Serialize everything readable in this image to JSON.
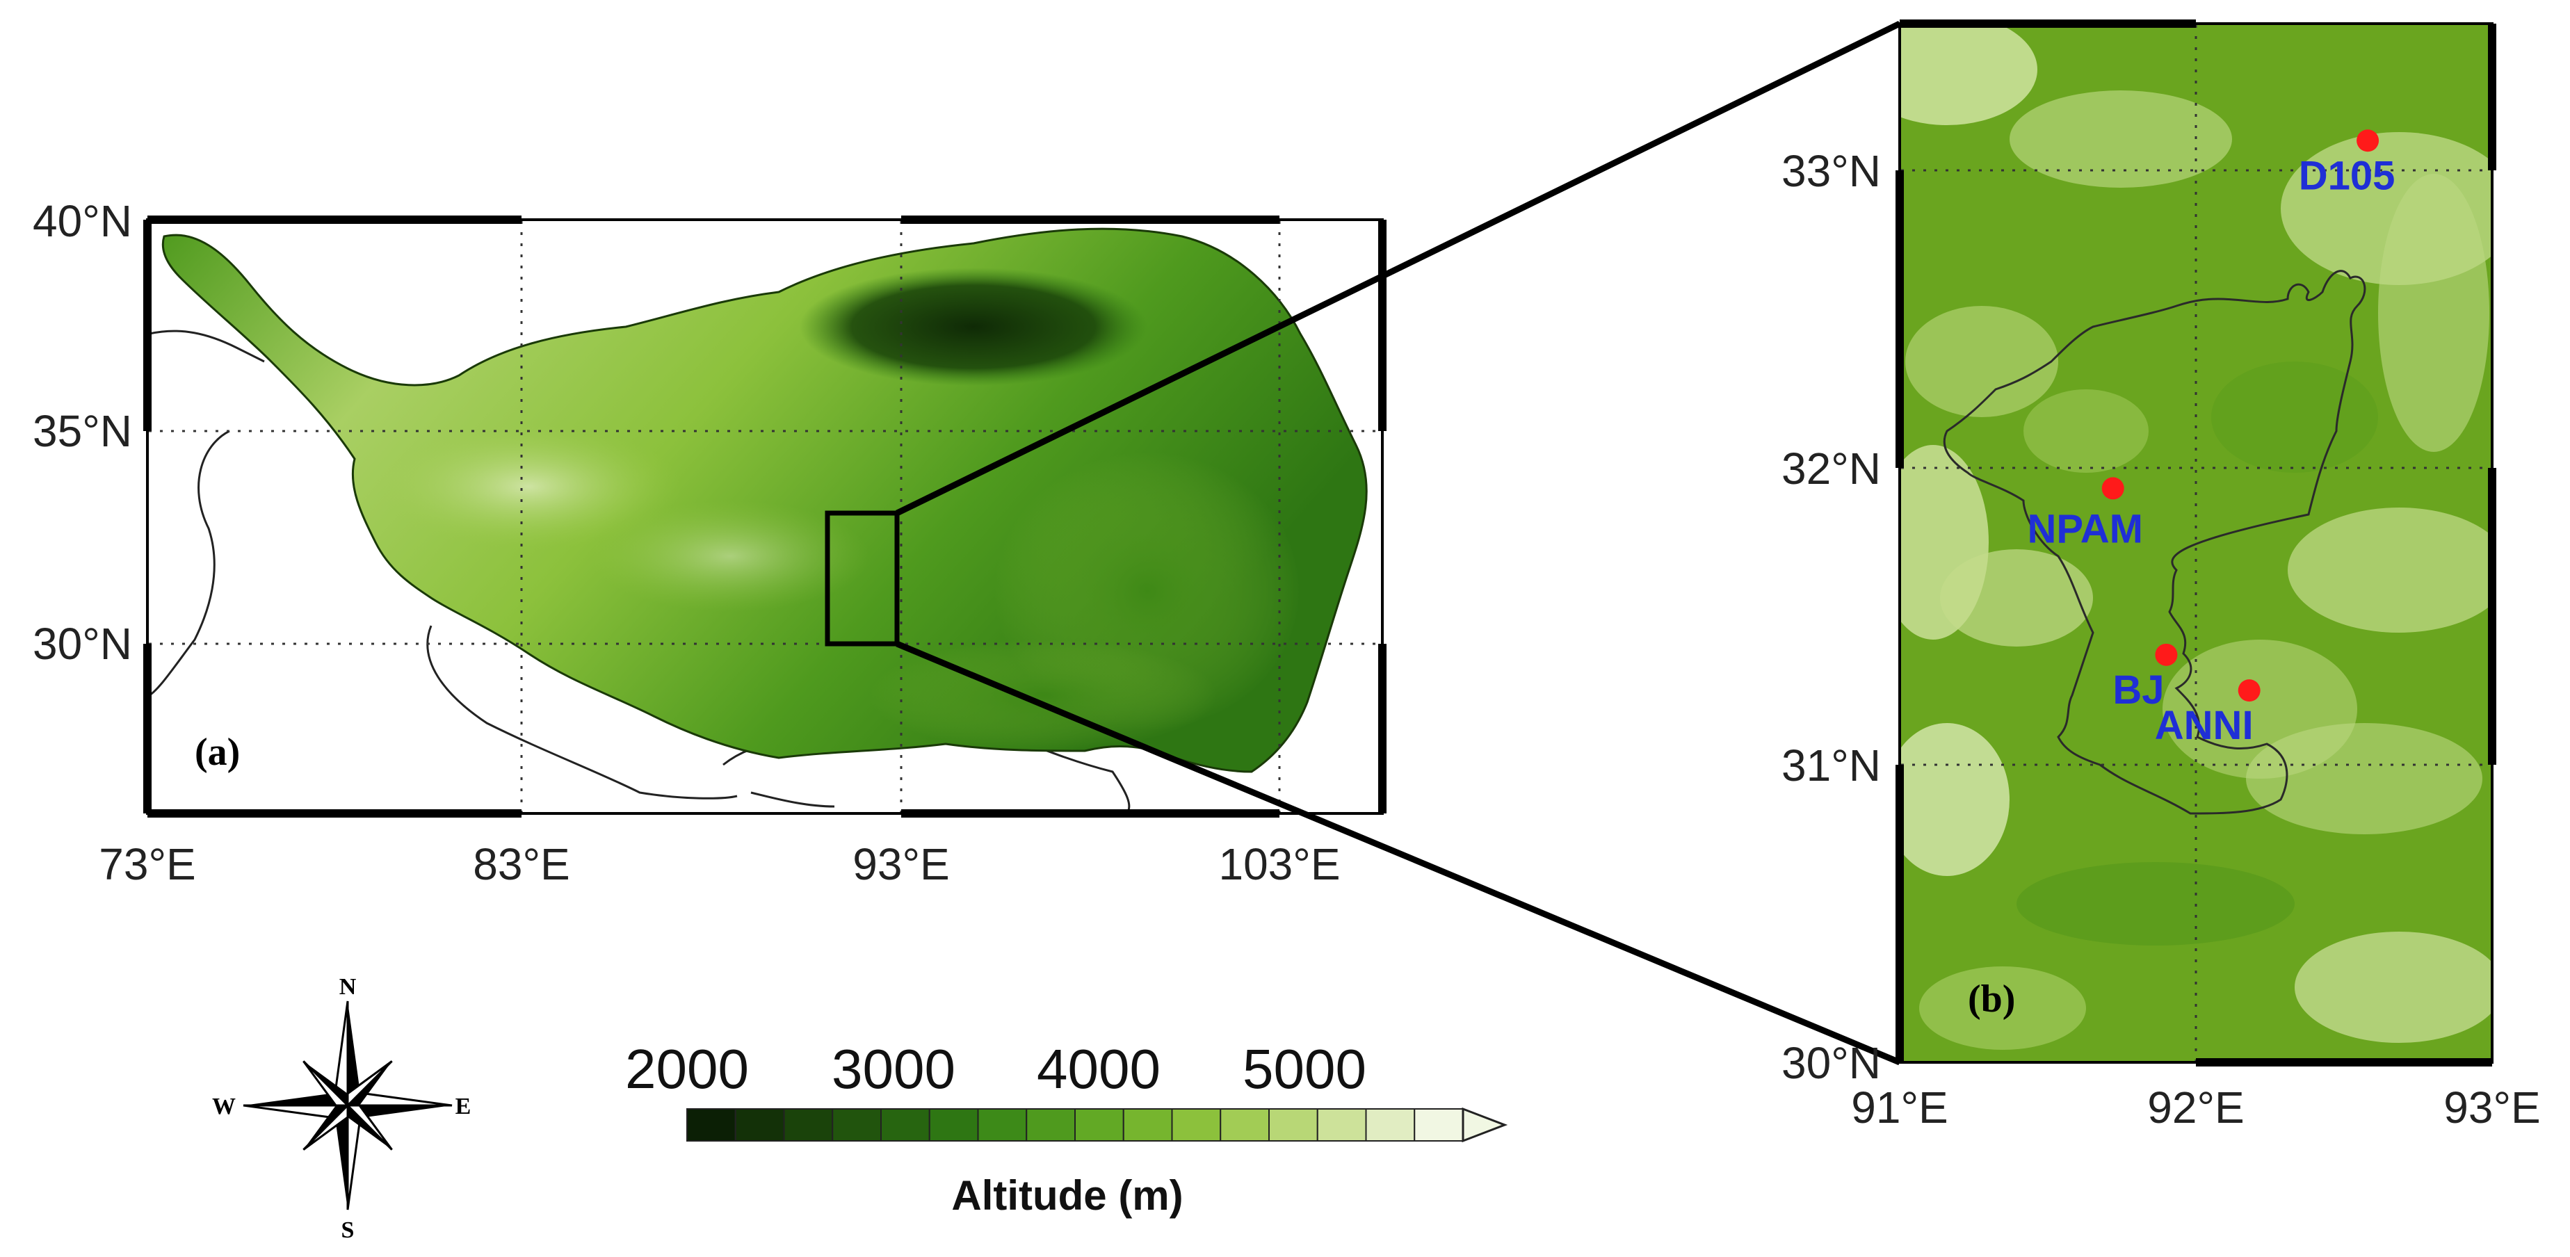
{
  "panel_a": {
    "label": "(a)",
    "lat_ticks": [
      "40°N",
      "35°N",
      "30°N"
    ],
    "lon_ticks": [
      "73°E",
      "83°E",
      "93°E",
      "103°E"
    ],
    "extent": {
      "lon_min": 73,
      "lon_max": 106,
      "lat_min": 26,
      "lat_max": 40
    },
    "inset_box": {
      "lon_min": 91,
      "lon_max": 93,
      "lat_min": 30,
      "lat_max": 33.4
    }
  },
  "panel_b": {
    "label": "(b)",
    "lat_ticks": [
      "33°N",
      "32°N",
      "31°N",
      "30°N"
    ],
    "lon_ticks": [
      "91°E",
      "92°E",
      "93°E"
    ],
    "extent": {
      "lon_min": 91,
      "lon_max": 93,
      "lat_min": 30,
      "lat_max": 33.5
    },
    "stations": [
      {
        "name": "D105",
        "lon": 92.58,
        "lat": 33.1
      },
      {
        "name": "NPAM",
        "lon": 91.72,
        "lat": 31.93
      },
      {
        "name": "BJ",
        "lon": 91.9,
        "lat": 31.37
      },
      {
        "name": "ANNI",
        "lon": 92.18,
        "lat": 31.25
      }
    ]
  },
  "colorbar": {
    "ticks": [
      "2000",
      "3000",
      "4000",
      "5000"
    ],
    "title": "Altitude (m)",
    "colors": [
      "#0b1f05",
      "#133108",
      "#1a430a",
      "#21540d",
      "#276510",
      "#2e7613",
      "#3d8a18",
      "#4f9a1e",
      "#62a925",
      "#76b52e",
      "#8cc13c",
      "#a2cc55",
      "#b8d776",
      "#cde29a",
      "#e1edc2",
      "#f1f7e3"
    ]
  },
  "compass": {
    "n": "N",
    "s": "S",
    "e": "E",
    "w": "W"
  },
  "colors": {
    "station_marker": "#ff1a1a",
    "station_label": "#1f2fd6",
    "terrain_base": "#6aa51f"
  }
}
